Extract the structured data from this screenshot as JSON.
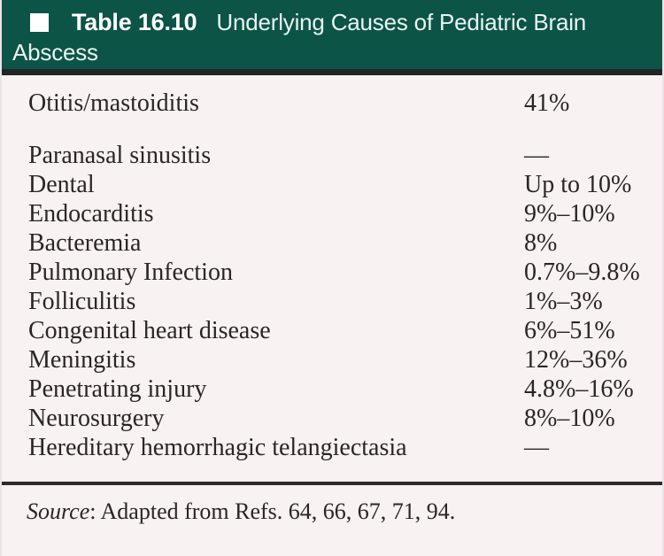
{
  "header": {
    "bullet_icon": "square-bullet-icon",
    "label": "Table 16.10",
    "title_line1": "Underlying Causes of Pediatric Brain",
    "title_line2": "Abscess",
    "bg_color": "#0b5446",
    "strip_color": "#202623",
    "text_color": "#ffffff"
  },
  "table": {
    "rows": [
      {
        "cause": "Otitis/mastoiditis",
        "value": "41%"
      },
      {
        "cause": "Paranasal sinusitis",
        "value": "—"
      },
      {
        "cause": "Dental",
        "value": "Up to 10%"
      },
      {
        "cause": "Endocarditis",
        "value": "9%–10%"
      },
      {
        "cause": "Bacteremia",
        "value": "8%"
      },
      {
        "cause": "Pulmonary Infection",
        "value": "0.7%–9.8%"
      },
      {
        "cause": "Folliculitis",
        "value": "1%–3%"
      },
      {
        "cause": "Congenital heart disease",
        "value": "6%–51%"
      },
      {
        "cause": "Meningitis",
        "value": "12%–36%"
      },
      {
        "cause": "Penetrating injury",
        "value": "4.8%–16%"
      },
      {
        "cause": "Neurosurgery",
        "value": "8%–10%"
      },
      {
        "cause": "Hereditary hemorrhagic telangiectasia",
        "value": "—"
      }
    ]
  },
  "footer": {
    "source_label": "Source",
    "source_rest": ": Adapted from Refs. 64, 66, 67, 71, 94."
  }
}
